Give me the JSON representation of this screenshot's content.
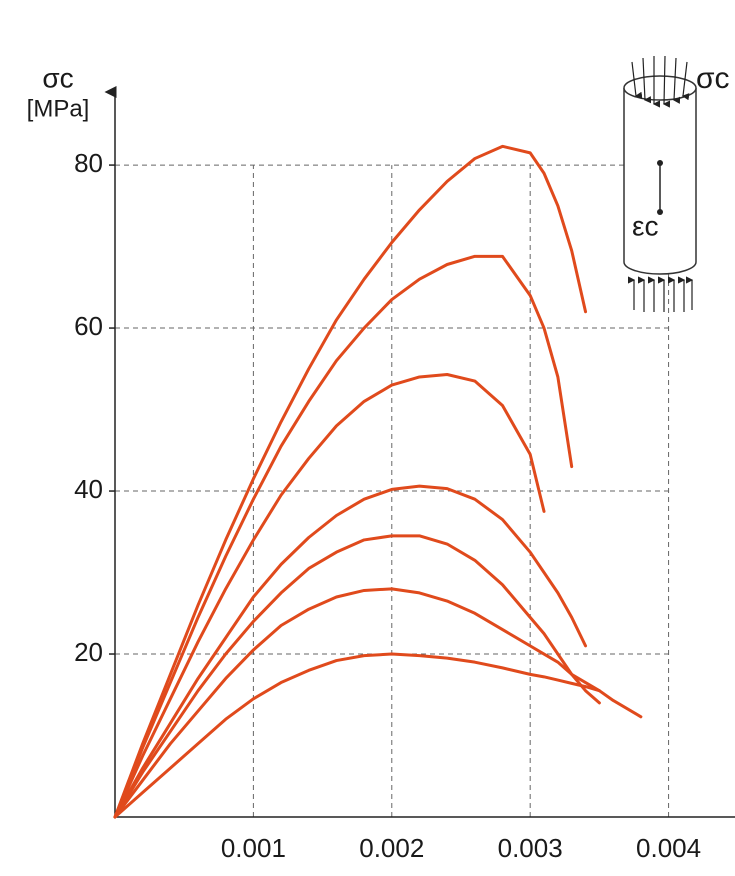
{
  "chart_data": {
    "type": "line",
    "ylabel": "σc",
    "yunit": "[MPa]",
    "annotations": [
      "σc",
      "εc"
    ],
    "x": [
      0,
      0.0002,
      0.0004,
      0.0006,
      0.0008,
      0.001,
      0.0012,
      0.0014,
      0.0016,
      0.0018,
      0.002,
      0.0022,
      0.0024,
      0.0026,
      0.0028,
      0.003,
      0.0031,
      0.0032,
      0.0033,
      0.0034,
      0.0035,
      0.0036,
      0.0038
    ],
    "series": [
      {
        "color": "#e04a1c",
        "values": [
          0,
          9,
          17.5,
          26,
          34,
          41.5,
          48.5,
          55,
          61,
          66,
          70.5,
          74.5,
          78,
          80.8,
          82.3,
          81.5,
          79,
          75,
          69.5,
          62,
          null,
          null,
          null
        ]
      },
      {
        "color": "#e04a1c",
        "values": [
          0,
          8.5,
          16.5,
          24.5,
          32,
          39,
          45.5,
          51,
          56,
          60,
          63.5,
          66,
          67.8,
          68.8,
          68.8,
          64,
          60,
          54,
          43,
          null,
          null,
          null,
          null
        ]
      },
      {
        "color": "#e04a1c",
        "values": [
          0,
          7.5,
          14.5,
          21.5,
          28,
          34,
          39.5,
          44,
          48,
          51,
          53,
          54,
          54.3,
          53.5,
          50.5,
          44.5,
          37.5,
          null,
          null,
          null,
          null,
          null,
          null
        ]
      },
      {
        "color": "#e04a1c",
        "values": [
          0,
          6,
          11.5,
          17,
          22,
          27,
          31,
          34.3,
          37,
          39,
          40.2,
          40.6,
          40.3,
          39,
          36.5,
          32.5,
          30,
          27.5,
          24.5,
          21,
          null,
          null,
          null
        ]
      },
      {
        "color": "#e04a1c",
        "values": [
          0,
          5.5,
          10.5,
          15.5,
          20,
          24,
          27.5,
          30.5,
          32.5,
          34,
          34.5,
          34.5,
          33.5,
          31.5,
          28.5,
          24.5,
          22.5,
          20,
          17.5,
          15.5,
          14,
          null,
          null
        ]
      },
      {
        "color": "#e04a1c",
        "values": [
          0,
          4.5,
          9,
          13,
          17,
          20.5,
          23.5,
          25.5,
          27,
          27.8,
          28,
          27.5,
          26.5,
          25,
          23,
          21,
          20,
          19,
          17.5,
          16.5,
          15.5,
          null,
          null
        ]
      },
      {
        "color": "#e04a1c",
        "values": [
          0,
          3,
          6,
          9,
          12,
          14.5,
          16.5,
          18,
          19.2,
          19.8,
          20,
          19.8,
          19.5,
          19,
          18.3,
          17.5,
          17.2,
          16.8,
          16.4,
          16,
          15.5,
          14.3,
          12.3
        ]
      }
    ],
    "xlim": [
      0,
      0.00448
    ],
    "ylim": [
      0,
      88.6
    ],
    "xticks": [
      0.001,
      0.002,
      0.003,
      0.004
    ],
    "yticks": [
      20,
      40,
      60,
      80
    ],
    "grid": true
  }
}
